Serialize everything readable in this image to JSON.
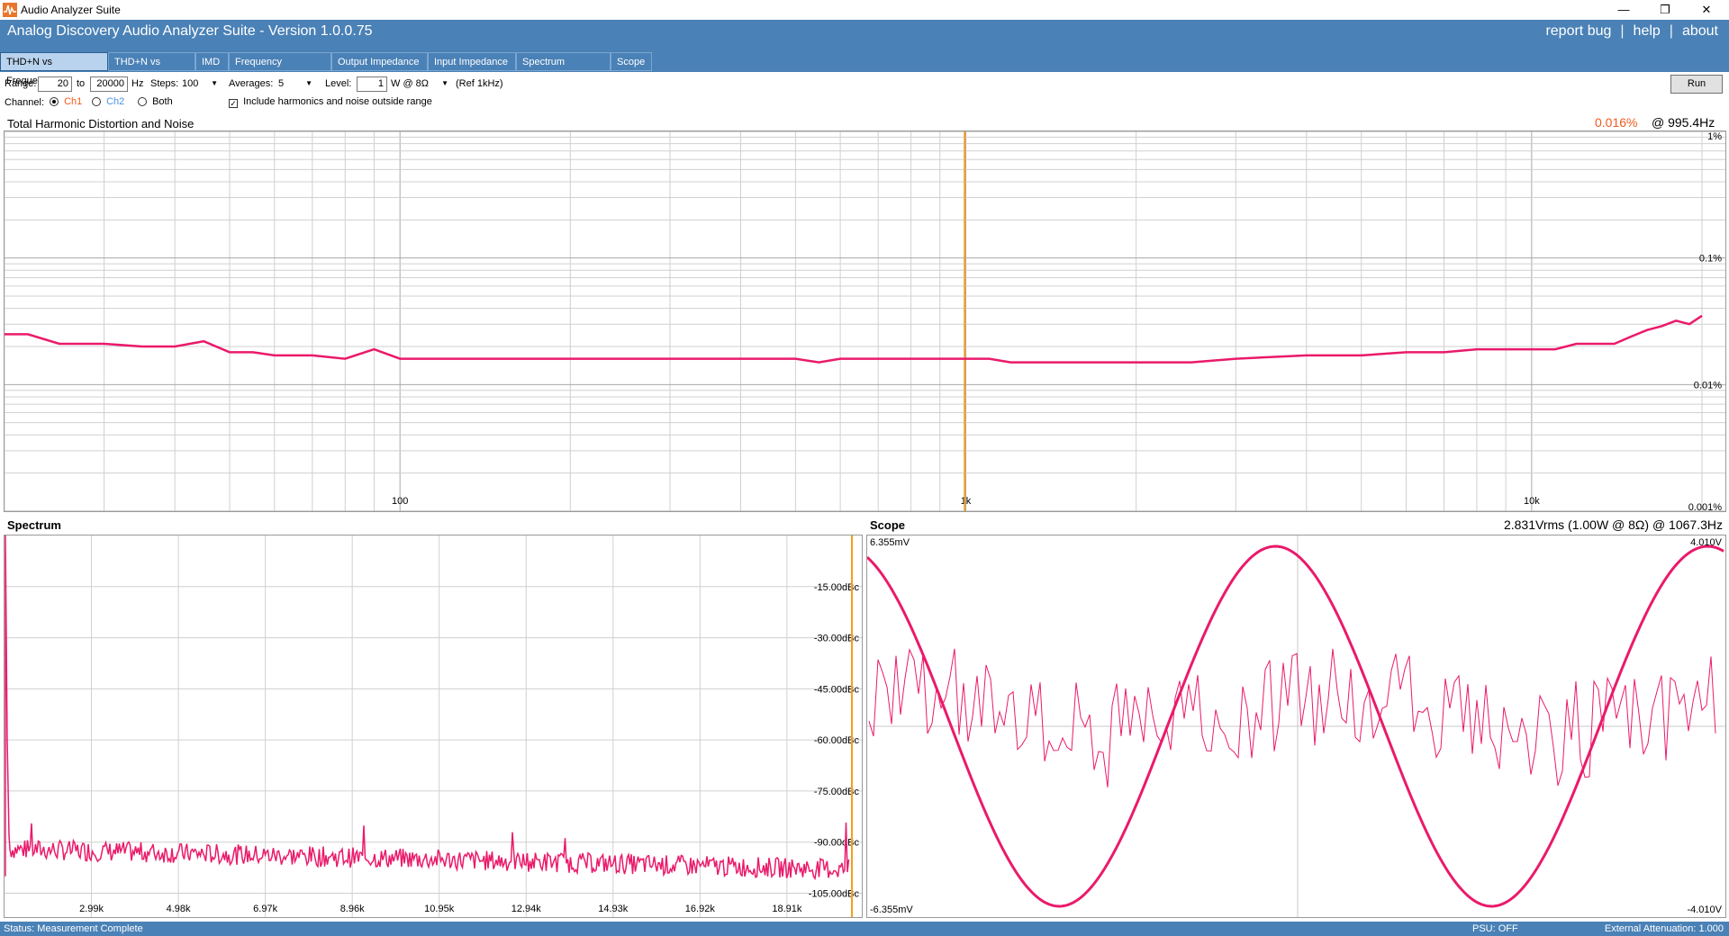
{
  "window": {
    "title": "Audio Analyzer Suite",
    "minimize_glyph": "—",
    "maximize_glyph": "❐",
    "close_glyph": "✕"
  },
  "header": {
    "title": "Analog Discovery Audio Analyzer Suite - Version   1.0.0.75",
    "links": [
      "report bug",
      "help",
      "about"
    ],
    "separator": "|"
  },
  "tabs": [
    {
      "label": "THD+N vs Frequency",
      "active": true
    },
    {
      "label": "THD+N vs Power",
      "active": false
    },
    {
      "label": "IMD",
      "active": false
    },
    {
      "label": "Frequency Response",
      "active": false
    },
    {
      "label": "Output Impedance",
      "active": false
    },
    {
      "label": "Input Impedance",
      "active": false
    },
    {
      "label": "Spectrum Analyzer",
      "active": false
    },
    {
      "label": "Scope",
      "active": false
    }
  ],
  "controls": {
    "range_label": "Range:",
    "range_from": "20",
    "to_label": "to",
    "range_to": "20000",
    "hz_label": "Hz",
    "steps_label": "Steps:",
    "steps_value": "100",
    "averages_label": "Averages:",
    "averages_value": "5",
    "level_label": "Level:",
    "level_value": "1",
    "level_unit": "W @ 8Ω",
    "ref_label": "(Ref 1kHz)",
    "channel_label": "Channel:",
    "ch1": "Ch1",
    "ch2": "Ch2",
    "both": "Both",
    "include_label": "Include harmonics and noise outside range",
    "include_checked": true,
    "run_label": "Run"
  },
  "thd_panel": {
    "title": "Total Harmonic Distortion and Noise",
    "readout_value": "0.016%",
    "readout_freq": "@ 995.4Hz"
  },
  "spectrum_panel": {
    "title": "Spectrum"
  },
  "scope_panel": {
    "title": "Scope",
    "readout": "2.831Vrms (1.00W @ 8Ω) @ 1067.3Hz",
    "left_top": "6.355mV",
    "left_bottom": "-6.355mV",
    "right_top": "4.010V",
    "right_bottom": "-4.010V"
  },
  "status": {
    "text": "Status: Measurement Complete",
    "psu": "PSU: OFF",
    "attenuation": "External Attenuation: 1.000"
  },
  "colors": {
    "accent": "#4a81b6",
    "trace": "#ea1a6a",
    "cursor": "#f0a020",
    "readout": "#f05a1e",
    "ch2": "#4a90e2"
  },
  "chart_data": [
    {
      "type": "line",
      "title": "Total Harmonic Distortion and Noise",
      "x_scale": "log",
      "y_scale": "log",
      "xlim": [
        20,
        22000
      ],
      "ylim": [
        0.001,
        1
      ],
      "x_tick_labels": [
        "100",
        "1k",
        "10k"
      ],
      "x_tick_values": [
        100,
        1000,
        10000
      ],
      "y_tick_labels": [
        "1%",
        "0.1%",
        "0.01%",
        "0.001%"
      ],
      "y_tick_values": [
        1,
        0.1,
        0.01,
        0.001
      ],
      "cursor_x": 995.4,
      "series": [
        {
          "x": [
            20,
            22,
            25,
            30,
            35,
            40,
            45,
            50,
            55,
            60,
            65,
            70,
            80,
            90,
            100,
            120,
            140,
            160,
            180,
            200,
            250,
            300,
            350,
            400,
            450,
            500,
            550,
            600,
            700,
            800,
            900,
            1000,
            1100,
            1200,
            1500,
            2000,
            2500,
            3000,
            4000,
            5000,
            6000,
            7000,
            8000,
            9000,
            10000,
            11000,
            12000,
            13000,
            14000,
            15000,
            16000,
            17000,
            18000,
            19000,
            20000
          ],
          "y": [
            0.025,
            0.025,
            0.021,
            0.021,
            0.02,
            0.02,
            0.022,
            0.018,
            0.018,
            0.017,
            0.017,
            0.017,
            0.016,
            0.019,
            0.016,
            0.016,
            0.016,
            0.016,
            0.016,
            0.016,
            0.016,
            0.016,
            0.016,
            0.016,
            0.016,
            0.016,
            0.015,
            0.016,
            0.016,
            0.016,
            0.016,
            0.016,
            0.016,
            0.015,
            0.015,
            0.015,
            0.015,
            0.016,
            0.017,
            0.017,
            0.018,
            0.018,
            0.019,
            0.019,
            0.019,
            0.019,
            0.021,
            0.021,
            0.021,
            0.024,
            0.027,
            0.029,
            0.032,
            0.03,
            0.035
          ]
        }
      ]
    },
    {
      "type": "line",
      "title": "Spectrum",
      "xlim": [
        1000,
        20500
      ],
      "ylim": [
        -112,
        0
      ],
      "x_tick_labels": [
        "2.99k",
        "4.98k",
        "6.97k",
        "8.96k",
        "10.95k",
        "12.94k",
        "14.93k",
        "16.92k",
        "18.91k"
      ],
      "x_tick_values": [
        2990,
        4980,
        6970,
        8960,
        10950,
        12940,
        14930,
        16920,
        18910
      ],
      "y_tick_labels": [
        "-15.00dBc",
        "-30.00dBc",
        "-45.00dBc",
        "-60.00dBc",
        "-75.00dBc",
        "-90.00dBc",
        "-105.00dBc"
      ],
      "y_tick_values": [
        -15,
        -30,
        -45,
        -60,
        -75,
        -90,
        -105
      ],
      "noise_floor_db": -92,
      "fundamental_db": 0,
      "fundamental_freq": 1000
    },
    {
      "type": "line",
      "title": "Scope",
      "series": [
        {
          "name": "signal",
          "amplitude_v": 4.01,
          "freq_hz": 1067.3
        },
        {
          "name": "residual",
          "amplitude_mv": 6.355
        }
      ]
    }
  ]
}
